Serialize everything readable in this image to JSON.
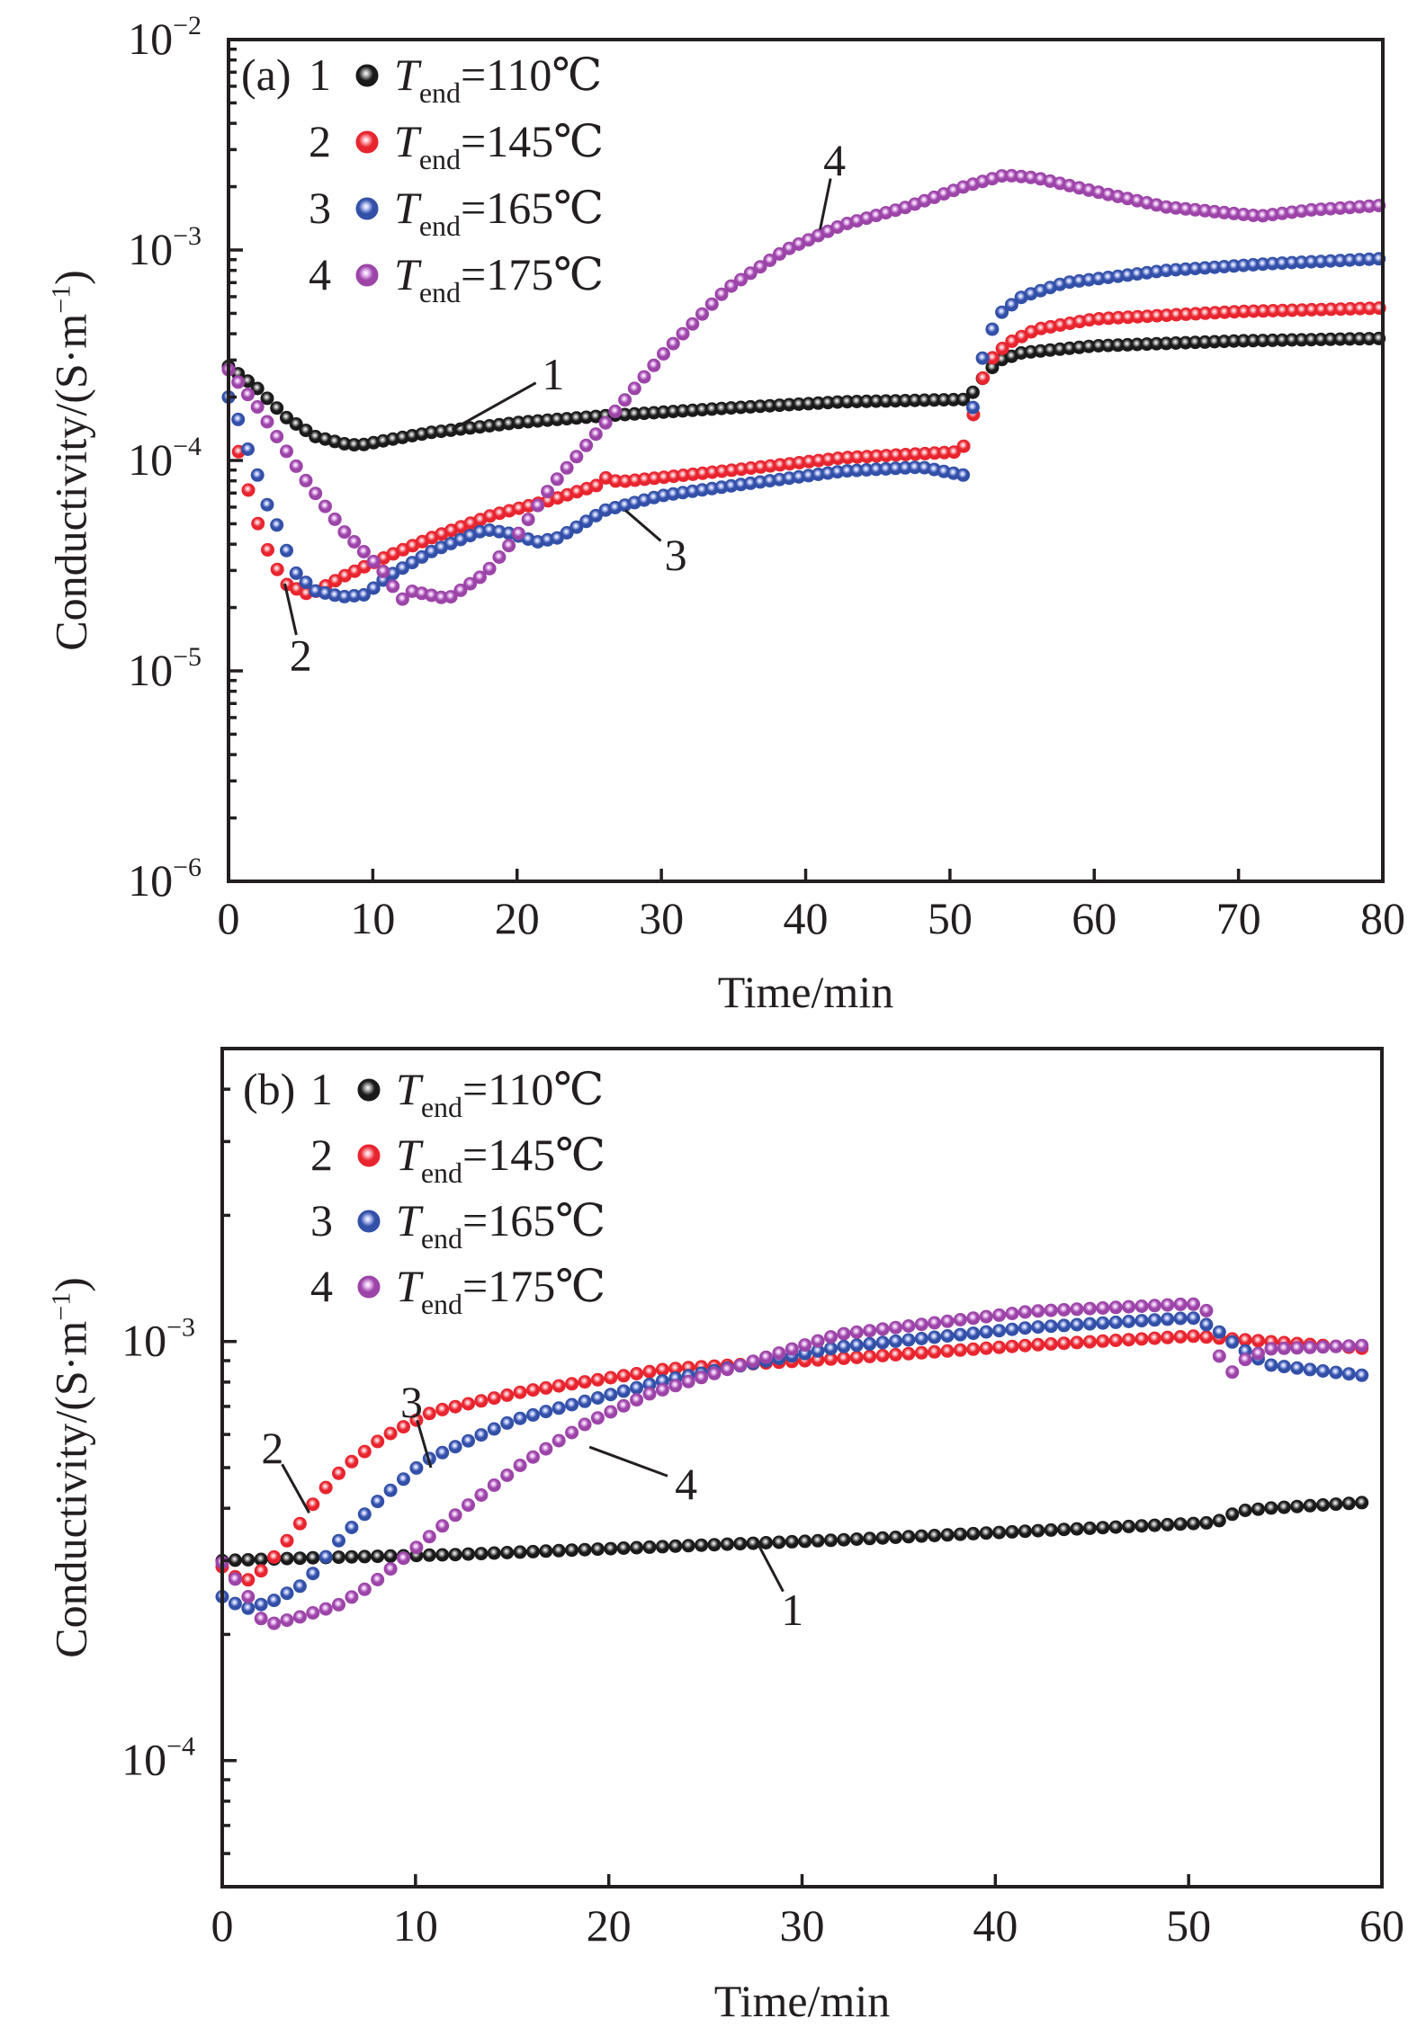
{
  "figure": {
    "panels": [
      "a",
      "b"
    ]
  },
  "chart_data": [
    {
      "id": "a",
      "type": "scatter",
      "panel_label": "(a)",
      "title": "",
      "xlabel": "Time/min",
      "ylabel": "Conductivity/(S·m⁻¹)",
      "ylabel_parts": {
        "main": "Conductivity/(S·m",
        "sup": "−1",
        "close": ")"
      },
      "yscale": "log",
      "xlim": [
        0,
        80
      ],
      "ylim": [
        1e-06,
        0.01
      ],
      "xticks": [
        0,
        10,
        20,
        30,
        40,
        50,
        60,
        70,
        80
      ],
      "xtick_labels": [
        "0",
        "10",
        "20",
        "30",
        "40",
        "50",
        "60",
        "70",
        "80"
      ],
      "yticks": [
        1e-06,
        1e-05,
        0.0001,
        0.001,
        0.01
      ],
      "ytick_labels": [
        {
          "base": "10",
          "exp": "−6"
        },
        {
          "base": "10",
          "exp": "−5"
        },
        {
          "base": "10",
          "exp": "−4"
        },
        {
          "base": "10",
          "exp": "−3"
        },
        {
          "base": "10",
          "exp": "−2"
        }
      ],
      "grid": false,
      "legend_position": "top-left",
      "series": [
        {
          "id": "1",
          "name": "T_end=110℃",
          "color": "#1a1a1a",
          "highlight": "#bdbdbd",
          "legend": {
            "num": "1",
            "T": "T",
            "sub": "end",
            "rest": "=110℃"
          },
          "points": [
            [
              0,
              0.00028
            ],
            [
              2,
              0.00022
            ],
            [
              4,
              0.00016
            ],
            [
              6,
              0.00013
            ],
            [
              8,
              0.00012
            ],
            [
              9.1,
              0.000118
            ],
            [
              11,
              0.000125
            ],
            [
              14.1,
              0.000136
            ],
            [
              20.3,
              0.000152
            ],
            [
              26.1,
              0.000163
            ],
            [
              35,
              0.000178
            ],
            [
              42.6,
              0.00019
            ],
            [
              51.2,
              0.000195
            ],
            [
              51.8,
              0.00022
            ],
            [
              52.5,
              0.00026
            ],
            [
              53.5,
              0.0003
            ],
            [
              55,
              0.000325
            ],
            [
              60,
              0.00035
            ],
            [
              70,
              0.00037
            ],
            [
              80,
              0.00038
            ]
          ]
        },
        {
          "id": "2",
          "name": "T_end=145℃",
          "color": "#e8242e",
          "highlight": "#ffc0c8",
          "legend": {
            "num": "2",
            "T": "T",
            "sub": "end",
            "rest": "=145℃"
          },
          "points": [
            [
              0.7,
              0.00011
            ],
            [
              1.4,
              7.1e-05
            ],
            [
              2.0,
              5.1e-05
            ],
            [
              2.6,
              3.9e-05
            ],
            [
              3.2,
              3.2e-05
            ],
            [
              3.9,
              2.6e-05
            ],
            [
              5.6,
              2.3e-05
            ],
            [
              7.9,
              2.8e-05
            ],
            [
              11,
              3.5e-05
            ],
            [
              14.1,
              4.3e-05
            ],
            [
              18.3,
              5.5e-05
            ],
            [
              22.4,
              6.5e-05
            ],
            [
              25.5,
              7.6e-05
            ],
            [
              26.2,
              8.3e-05
            ],
            [
              27,
              7.9e-05
            ],
            [
              35,
              9e-05
            ],
            [
              42.6,
              0.000103
            ],
            [
              50.8,
              0.00011
            ],
            [
              51.4,
              0.00014
            ],
            [
              52,
              0.00022
            ],
            [
              52.8,
              0.0003
            ],
            [
              54,
              0.00036
            ],
            [
              56,
              0.00042
            ],
            [
              60,
              0.00047
            ],
            [
              70,
              0.00051
            ],
            [
              80,
              0.00053
            ]
          ]
        },
        {
          "id": "3",
          "name": "T_end=165℃",
          "color": "#3350a8",
          "highlight": "#c8d0ff",
          "legend": {
            "num": "3",
            "T": "T",
            "sub": "end",
            "rest": "=165℃"
          },
          "points": [
            [
              0,
              0.0002
            ],
            [
              0.7,
              0.000155
            ],
            [
              1.3,
              0.000115
            ],
            [
              2.1,
              8.2e-05
            ],
            [
              2.7,
              6.1e-05
            ],
            [
              3.5,
              4.7e-05
            ],
            [
              4.1,
              3.6e-05
            ],
            [
              4.7,
              2.9e-05
            ],
            [
              6,
              2.4e-05
            ],
            [
              7.9,
              2.25e-05
            ],
            [
              9.5,
              2.3e-05
            ],
            [
              11,
              2.8e-05
            ],
            [
              14.1,
              3.7e-05
            ],
            [
              17.8,
              4.7e-05
            ],
            [
              19.5,
              4.5e-05
            ],
            [
              21.4,
              4.1e-05
            ],
            [
              22.9,
              4.3e-05
            ],
            [
              26.1,
              5.8e-05
            ],
            [
              30,
              6.8e-05
            ],
            [
              35,
              7.6e-05
            ],
            [
              42.6,
              8.9e-05
            ],
            [
              48,
              9.3e-05
            ],
            [
              51,
              8.5e-05
            ],
            [
              51.4,
              0.00015
            ],
            [
              52,
              0.00026
            ],
            [
              52.6,
              0.00038
            ],
            [
              53.5,
              0.0005
            ],
            [
              55,
              0.0006
            ],
            [
              58,
              0.0007
            ],
            [
              65,
              0.0008
            ],
            [
              72,
              0.00086
            ],
            [
              80,
              0.00091
            ]
          ]
        },
        {
          "id": "4",
          "name": "T_end=175℃",
          "color": "#9c44a8",
          "highlight": "#f0c8f8",
          "legend": {
            "num": "4",
            "T": "T",
            "sub": "end",
            "rest": "=175℃"
          },
          "points": [
            [
              0,
              0.00027
            ],
            [
              2,
              0.00018
            ],
            [
              5.2,
              8.3e-05
            ],
            [
              8,
              4.6e-05
            ],
            [
              11.2,
              2.75e-05
            ],
            [
              11.8,
              2.1e-05
            ],
            [
              12.6,
              2.4e-05
            ],
            [
              15.2,
              2.2e-05
            ],
            [
              17.8,
              2.9e-05
            ],
            [
              19.9,
              4.3e-05
            ],
            [
              22.4,
              7.6e-05
            ],
            [
              26.1,
              0.00015
            ],
            [
              30.3,
              0.00033
            ],
            [
              34.5,
              0.00065
            ],
            [
              38.6,
              0.001
            ],
            [
              42.6,
              0.00132
            ],
            [
              47,
              0.0016
            ],
            [
              51,
              0.002
            ],
            [
              53.8,
              0.00227
            ],
            [
              56,
              0.0022
            ],
            [
              60,
              0.0019
            ],
            [
              65,
              0.0016
            ],
            [
              71.5,
              0.00145
            ],
            [
              75,
              0.00155
            ],
            [
              80,
              0.00163
            ]
          ]
        }
      ],
      "annotations": [
        {
          "text": "1",
          "series": "1",
          "at": [
            15.5,
            0.00014
          ],
          "label": [
            22.5,
            0.00026
          ]
        },
        {
          "text": "2",
          "series": "2",
          "at": [
            3.9,
            2.6e-05
          ],
          "label": [
            5,
            1.2e-05
          ]
        },
        {
          "text": "3",
          "series": "3",
          "at": [
            27.5,
            5.8e-05
          ],
          "label": [
            31,
            3.6e-05
          ]
        },
        {
          "text": "4",
          "series": "4",
          "at": [
            41,
            0.00125
          ],
          "label": [
            42,
            0.0027
          ]
        }
      ]
    },
    {
      "id": "b",
      "type": "scatter",
      "panel_label": "(b)",
      "title": "",
      "xlabel": "Time/min",
      "ylabel": "Conductivity/(S·m⁻¹)",
      "ylabel_parts": {
        "main": "Conductivity/(S·m",
        "sup": "−1",
        "close": ")"
      },
      "yscale": "log",
      "xlim": [
        0,
        60
      ],
      "ylim": [
        5e-05,
        0.005
      ],
      "xticks": [
        0,
        10,
        20,
        30,
        40,
        50,
        60
      ],
      "xtick_labels": [
        "0",
        "10",
        "20",
        "30",
        "40",
        "50",
        "60"
      ],
      "yticks": [
        0.0001,
        0.001
      ],
      "ytick_labels": [
        {
          "base": "10",
          "exp": "−4"
        },
        {
          "base": "10",
          "exp": "−3"
        }
      ],
      "grid": false,
      "legend_position": "top-left",
      "series": [
        {
          "id": "1",
          "name": "T_end=110℃",
          "color": "#1a1a1a",
          "highlight": "#bdbdbd",
          "legend": {
            "num": "1",
            "T": "T",
            "sub": "end",
            "rest": "=110℃"
          },
          "points": [
            [
              0,
              0.0003
            ],
            [
              5,
              0.000305
            ],
            [
              12,
              0.00031
            ],
            [
              22.1,
              0.000323
            ],
            [
              31.9,
              0.000336
            ],
            [
              41.8,
              0.000353
            ],
            [
              51.4,
              0.00037
            ],
            [
              52.6,
              0.000394
            ],
            [
              54.1,
              0.0004
            ],
            [
              59.5,
              0.000414
            ]
          ]
        },
        {
          "id": "2",
          "name": "T_end=145℃",
          "color": "#e8242e",
          "highlight": "#ffc0c8",
          "legend": {
            "num": "2",
            "T": "T",
            "sub": "end",
            "rest": "=145℃"
          },
          "points": [
            [
              0,
              0.00029
            ],
            [
              1.1,
              0.000265
            ],
            [
              2.3,
              0.00029
            ],
            [
              3.0,
              0.00032
            ],
            [
              3.7,
              0.00035
            ],
            [
              4.4,
              0.00039
            ],
            [
              5.0,
              0.00043
            ],
            [
              6.3,
              0.0005
            ],
            [
              8.3,
              0.00059
            ],
            [
              10.9,
              0.00068
            ],
            [
              15.6,
              0.00076
            ],
            [
              23,
              0.00086
            ],
            [
              31.9,
              0.00091
            ],
            [
              41.8,
              0.00098
            ],
            [
              50.2,
              0.00103
            ],
            [
              52.8,
              0.00101
            ],
            [
              59.5,
              0.00096
            ]
          ]
        },
        {
          "id": "3",
          "name": "T_end=165℃",
          "color": "#3350a8",
          "highlight": "#c8d0ff",
          "legend": {
            "num": "3",
            "T": "T",
            "sub": "end",
            "rest": "=165℃"
          },
          "points": [
            [
              0,
              0.000246
            ],
            [
              1.2,
              0.00023
            ],
            [
              2.6,
              0.00024
            ],
            [
              4.3,
              0.000265
            ],
            [
              5.9,
              0.00033
            ],
            [
              7.9,
              0.00041
            ],
            [
              10.5,
              0.00052
            ],
            [
              15.1,
              0.00065
            ],
            [
              23,
              0.00081
            ],
            [
              31.9,
              0.00097
            ],
            [
              41.8,
              0.00108
            ],
            [
              50.2,
              0.00114
            ],
            [
              51.4,
              0.00107
            ],
            [
              52.6,
              0.00097
            ],
            [
              54.1,
              0.00088
            ],
            [
              59.5,
              0.000825
            ]
          ]
        },
        {
          "id": "4",
          "name": "T_end=175℃",
          "color": "#9c44a8",
          "highlight": "#f0c8f8",
          "legend": {
            "num": "4",
            "T": "T",
            "sub": "end",
            "rest": "=175℃"
          },
          "points": [
            [
              0,
              0.000297
            ],
            [
              0.7,
              0.00027
            ],
            [
              1.6,
              0.000237
            ],
            [
              2.2,
              0.00021
            ],
            [
              4,
              0.00022
            ],
            [
              6,
              0.000235
            ],
            [
              7.6,
              0.00026
            ],
            [
              9.6,
              0.00031
            ],
            [
              12.2,
              0.00039
            ],
            [
              15.5,
              0.00051
            ],
            [
              18.9,
              0.00064
            ],
            [
              22.1,
              0.00075
            ],
            [
              31.9,
              0.00104
            ],
            [
              41.8,
              0.00118
            ],
            [
              50.2,
              0.00123
            ],
            [
              51.0,
              0.00118
            ],
            [
              51.5,
              0.00094
            ],
            [
              52.1,
              0.00083
            ],
            [
              52.8,
              0.0009
            ],
            [
              54.1,
              0.00096
            ],
            [
              59.5,
              0.00098
            ]
          ]
        }
      ],
      "annotations": [
        {
          "text": "1",
          "series": "1",
          "at": [
            27.7,
            0.00033
          ],
          "label": [
            29.5,
            0.00023
          ]
        },
        {
          "text": "2",
          "series": "2",
          "at": [
            4.5,
            0.00039
          ],
          "label": [
            2.6,
            0.00056
          ]
        },
        {
          "text": "3",
          "series": "3",
          "at": [
            10.8,
            0.0005
          ],
          "label": [
            9.8,
            0.00072
          ]
        },
        {
          "text": "4",
          "series": "4",
          "at": [
            19,
            0.00056
          ],
          "label": [
            24,
            0.00046
          ]
        }
      ]
    }
  ]
}
